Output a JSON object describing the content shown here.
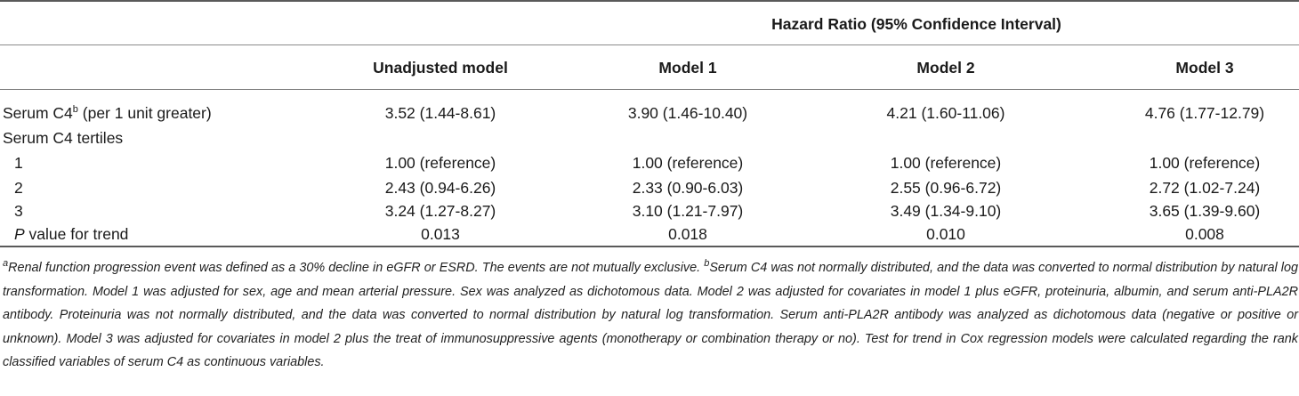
{
  "table": {
    "group_header": "Hazard Ratio (95% Confidence Interval)",
    "columns": [
      "Unadjusted model",
      "Model 1",
      "Model 2",
      "Model 3"
    ],
    "rows": [
      {
        "label_main": "Serum C4",
        "label_sup": "b",
        "label_rest": " (per 1 unit greater)",
        "values": [
          "3.52 (1.44-8.61)",
          "3.90 (1.46-10.40)",
          "4.21 (1.60-11.06)",
          "4.76 (1.77-12.79)"
        ]
      },
      {
        "label": "Serum C4 tertiles",
        "values": []
      },
      {
        "label": "1",
        "values": [
          "1.00 (reference)",
          "1.00 (reference)",
          "1.00 (reference)",
          "1.00 (reference)"
        ]
      },
      {
        "label": "2",
        "values": [
          "2.43 (0.94-6.26)",
          "2.33 (0.90-6.03)",
          "2.55 (0.96-6.72)",
          "2.72 (1.02-7.24)"
        ]
      },
      {
        "label": "3",
        "values": [
          "3.24 (1.27-8.27)",
          "3.10 (1.21-7.97)",
          "3.49 (1.34-9.10)",
          "3.65 (1.39-9.60)"
        ]
      },
      {
        "label_italic": "P",
        "label_rest": " value for trend",
        "values": [
          "0.013",
          "0.018",
          "0.010",
          "0.008"
        ]
      }
    ]
  },
  "footnotes": {
    "a_mark": "a",
    "a_text": "Renal function progression event was defined as a 30% decline in eGFR or ESRD. The events are not mutually exclusive. ",
    "b_mark": "b",
    "b_text": "Serum C4 was not normally distributed, and the data was converted to normal distribution by natural log transformation. Model 1 was adjusted for sex, age and mean arterial pressure. Sex was analyzed as dichotomous data. Model 2 was adjusted for covariates in model 1 plus eGFR, proteinuria, albumin, and serum anti-PLA2R antibody. Proteinuria was not normally distributed, and the data was converted to normal distribution by natural log transformation. Serum anti-PLA2R antibody was analyzed as dichotomous data (negative or positive or unknown). Model 3 was adjusted for covariates in model 2 plus the treat of immunosuppressive agents (monotherapy or combination therapy or no). Test for trend in Cox regression models were calculated regarding the rank classified variables of serum C4 as continuous variables."
  }
}
